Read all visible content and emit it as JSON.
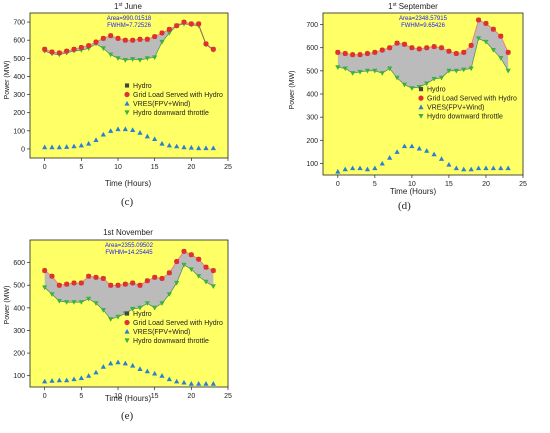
{
  "colors": {
    "background": "#ffff66",
    "fill_between": "#bbbbbb",
    "hydro": "#444444",
    "grid": "#e03030",
    "grid_line": "#ff6b6b",
    "vres": "#2a7fd4",
    "throttle": "#3cb043"
  },
  "chart_data": [
    {
      "id": "c",
      "type": "scatter",
      "title_main": "1",
      "title_sup": "st",
      "title_rest": " June",
      "caption": "(c)",
      "annotation_area": "Area=990.01518",
      "annotation_fwhm": "FWHM=7.72526",
      "xlabel": "Time (Hours)",
      "ylabel": "Power (MW)",
      "xlim": [
        -2,
        25
      ],
      "ylim": [
        -50,
        750
      ],
      "xticks": [
        "0",
        "5",
        "10",
        "15",
        "20",
        "25"
      ],
      "yticks": [
        "0",
        "100",
        "200",
        "300",
        "400",
        "500",
        "600",
        "700"
      ],
      "legend": [
        "Hydro",
        "Grid Load Served with Hydro",
        "VRES(FPV+Wind)",
        "Hydro downward throttle"
      ],
      "x": [
        0,
        1,
        2,
        3,
        4,
        5,
        6,
        7,
        8,
        9,
        10,
        11,
        12,
        13,
        14,
        15,
        16,
        17,
        18,
        19,
        20,
        21,
        22,
        23
      ],
      "series": [
        {
          "name": "Grid Load Served with Hydro",
          "values": [
            550,
            535,
            530,
            540,
            550,
            560,
            570,
            590,
            610,
            625,
            610,
            600,
            600,
            605,
            605,
            620,
            640,
            660,
            680,
            700,
            690,
            690,
            580,
            550
          ]
        },
        {
          "name": "Hydro downward throttle",
          "values": [
            540,
            525,
            520,
            530,
            540,
            545,
            555,
            580,
            555,
            520,
            500,
            490,
            495,
            490,
            500,
            505,
            590,
            640,
            680,
            690,
            685,
            680,
            575,
            545
          ]
        },
        {
          "name": "VRES(FPV+Wind)",
          "values": [
            10,
            10,
            10,
            12,
            15,
            20,
            30,
            50,
            80,
            100,
            110,
            110,
            105,
            90,
            70,
            55,
            30,
            20,
            15,
            10,
            8,
            5,
            5,
            5
          ]
        },
        {
          "name": "Hydro",
          "values": [
            550,
            535,
            530,
            540,
            550,
            560,
            570,
            590,
            610,
            625,
            610,
            600,
            600,
            605,
            605,
            620,
            640,
            660,
            680,
            700,
            690,
            690,
            580,
            550
          ]
        }
      ]
    },
    {
      "id": "d",
      "type": "scatter",
      "title_main": "1",
      "title_sup": "st",
      "title_rest": " September",
      "caption": "(d)",
      "annotation_area": "Area=2348.57915",
      "annotation_fwhm": "FWHM=9.65426",
      "xlabel": "Time (Hours)",
      "ylabel": "Power (MW)",
      "xlim": [
        -2,
        25
      ],
      "ylim": [
        50,
        750
      ],
      "xticks": [
        "0",
        "5",
        "10",
        "15",
        "20",
        "25"
      ],
      "yticks": [
        "100",
        "200",
        "300",
        "400",
        "500",
        "600",
        "700"
      ],
      "legend": [
        "Hydro",
        "Grid Load Served with Hydro",
        "VRES(FPV+Wind)",
        "Hydro downward throttle"
      ],
      "x": [
        0,
        1,
        2,
        3,
        4,
        5,
        6,
        7,
        8,
        9,
        10,
        11,
        12,
        13,
        14,
        15,
        16,
        17,
        18,
        19,
        20,
        21,
        22,
        23
      ],
      "series": [
        {
          "name": "Grid Load Served with Hydro",
          "values": [
            580,
            575,
            570,
            570,
            575,
            580,
            590,
            600,
            620,
            615,
            600,
            595,
            600,
            605,
            600,
            585,
            575,
            580,
            610,
            720,
            705,
            680,
            650,
            580
          ]
        },
        {
          "name": "Hydro downward throttle",
          "values": [
            515,
            510,
            490,
            495,
            500,
            500,
            490,
            510,
            470,
            440,
            425,
            430,
            445,
            465,
            470,
            500,
            500,
            505,
            510,
            640,
            625,
            590,
            555,
            500
          ]
        },
        {
          "name": "VRES(FPV+Wind)",
          "values": [
            65,
            75,
            80,
            80,
            75,
            80,
            100,
            125,
            150,
            175,
            175,
            165,
            155,
            140,
            120,
            95,
            80,
            75,
            75,
            80,
            80,
            80,
            80,
            80
          ]
        },
        {
          "name": "Hydro",
          "values": [
            580,
            575,
            570,
            570,
            575,
            580,
            590,
            600,
            620,
            615,
            600,
            595,
            600,
            605,
            600,
            585,
            575,
            580,
            610,
            720,
            705,
            680,
            650,
            580
          ]
        }
      ]
    },
    {
      "id": "e",
      "type": "scatter",
      "title_main": "1st November",
      "title_sup": "",
      "title_rest": "",
      "caption": "(e)",
      "annotation_area": "Area=2355.09502",
      "annotation_fwhm": "FWHM=14.25445",
      "xlabel": "Time (Hours)",
      "ylabel": "Power (MW)",
      "xlim": [
        -2,
        25
      ],
      "ylim": [
        50,
        700
      ],
      "xticks": [
        "0",
        "5",
        "10",
        "15",
        "20",
        "25"
      ],
      "yticks": [
        "100",
        "200",
        "300",
        "400",
        "500",
        "600"
      ],
      "legend": [
        "Hydro",
        "Grid Load Served with Hydro",
        "VRES(FPV+Wind)",
        "Hydro downward throttle"
      ],
      "x": [
        0,
        1,
        2,
        3,
        4,
        5,
        6,
        7,
        8,
        9,
        10,
        11,
        12,
        13,
        14,
        15,
        16,
        17,
        18,
        19,
        20,
        21,
        22,
        23
      ],
      "series": [
        {
          "name": "Grid Load Served with Hydro",
          "values": [
            565,
            540,
            500,
            505,
            510,
            510,
            540,
            535,
            530,
            500,
            500,
            505,
            510,
            500,
            520,
            535,
            530,
            555,
            605,
            650,
            635,
            615,
            580,
            565
          ]
        },
        {
          "name": "Hydro downward throttle",
          "values": [
            490,
            460,
            430,
            425,
            425,
            425,
            440,
            420,
            390,
            350,
            360,
            375,
            395,
            400,
            420,
            400,
            420,
            460,
            510,
            590,
            570,
            540,
            515,
            495
          ]
        },
        {
          "name": "VRES(FPV+Wind)",
          "values": [
            75,
            78,
            80,
            80,
            85,
            90,
            100,
            115,
            140,
            155,
            160,
            155,
            145,
            130,
            120,
            110,
            100,
            85,
            75,
            70,
            65,
            65,
            65,
            65
          ]
        },
        {
          "name": "Hydro",
          "values": [
            565,
            540,
            500,
            505,
            510,
            510,
            540,
            535,
            530,
            500,
            500,
            505,
            510,
            500,
            520,
            535,
            530,
            555,
            605,
            650,
            635,
            615,
            580,
            565
          ]
        }
      ]
    }
  ]
}
